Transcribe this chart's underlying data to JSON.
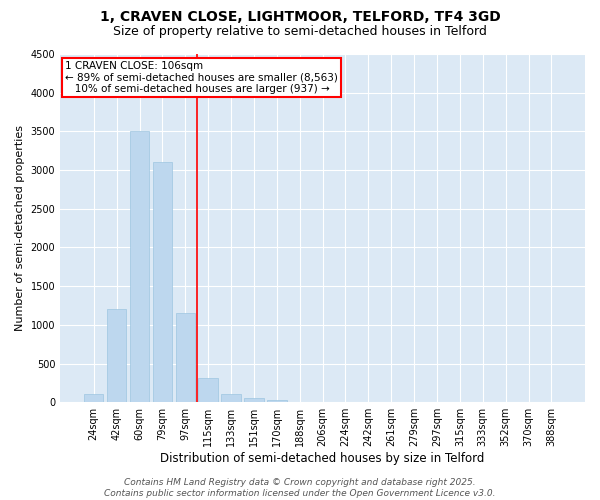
{
  "title": "1, CRAVEN CLOSE, LIGHTMOOR, TELFORD, TF4 3GD",
  "subtitle": "Size of property relative to semi-detached houses in Telford",
  "xlabel": "Distribution of semi-detached houses by size in Telford",
  "ylabel": "Number of semi-detached properties",
  "categories": [
    "24sqm",
    "42sqm",
    "60sqm",
    "79sqm",
    "97sqm",
    "115sqm",
    "133sqm",
    "151sqm",
    "170sqm",
    "188sqm",
    "206sqm",
    "224sqm",
    "242sqm",
    "261sqm",
    "279sqm",
    "297sqm",
    "315sqm",
    "333sqm",
    "352sqm",
    "370sqm",
    "388sqm"
  ],
  "values": [
    100,
    1200,
    3500,
    3100,
    1150,
    310,
    110,
    55,
    30,
    5,
    2,
    0,
    0,
    0,
    0,
    0,
    0,
    0,
    0,
    0,
    0
  ],
  "bar_color": "#bdd7ee",
  "bar_edge_color": "#9ec6e0",
  "vline_x": 4.5,
  "vline_color": "red",
  "annotation_text": "1 CRAVEN CLOSE: 106sqm\n← 89% of semi-detached houses are smaller (8,563)\n   10% of semi-detached houses are larger (937) →",
  "annotation_box_color": "white",
  "annotation_box_edge_color": "red",
  "ylim": [
    0,
    4500
  ],
  "yticks": [
    0,
    500,
    1000,
    1500,
    2000,
    2500,
    3000,
    3500,
    4000,
    4500
  ],
  "background_color": "#dce9f5",
  "plot_bg_color": "#dce9f5",
  "footer_text": "Contains HM Land Registry data © Crown copyright and database right 2025.\nContains public sector information licensed under the Open Government Licence v3.0.",
  "title_fontsize": 10,
  "subtitle_fontsize": 9,
  "xlabel_fontsize": 8.5,
  "ylabel_fontsize": 8,
  "tick_fontsize": 7,
  "annotation_fontsize": 7.5,
  "footer_fontsize": 6.5
}
